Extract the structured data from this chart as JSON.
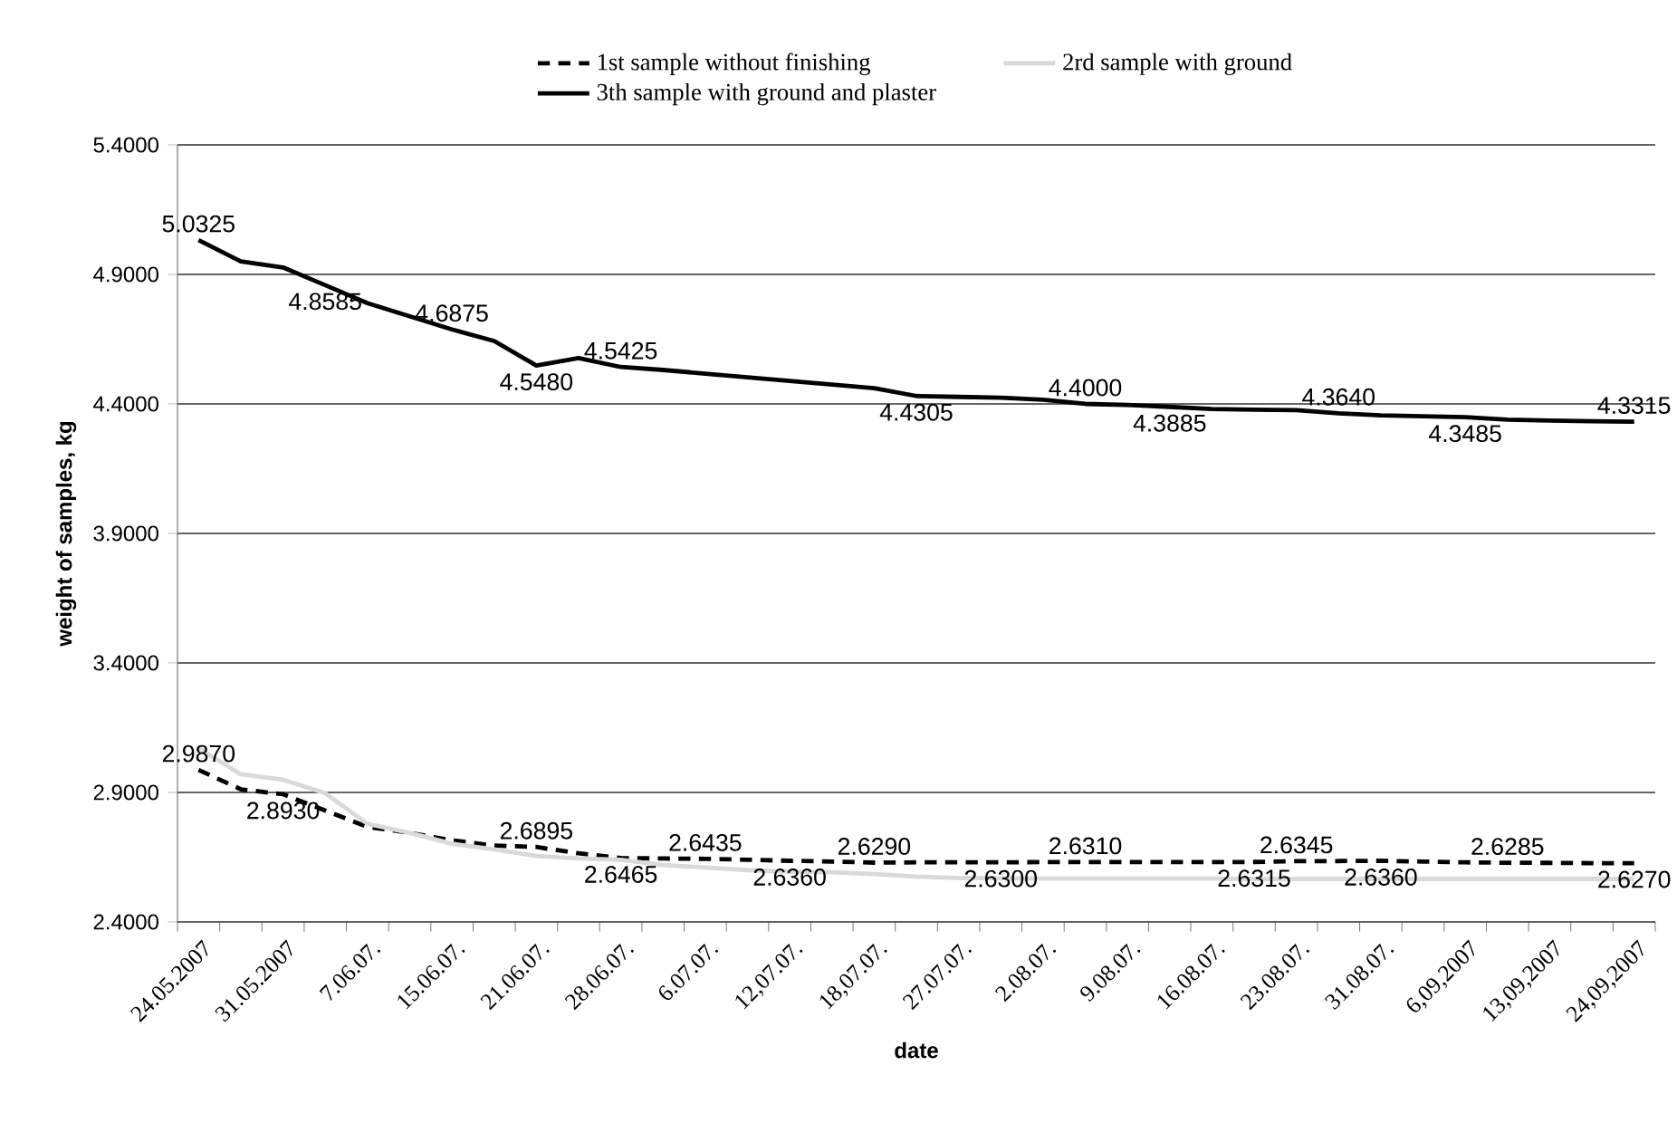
{
  "chart_data": {
    "type": "line",
    "xlabel": "date",
    "ylabel": "weight of samples, kg",
    "categories": [
      "24.05.2007",
      null,
      "31.05.2007",
      null,
      "7.06.07.",
      null,
      "15.06.07.",
      null,
      "21.06.07.",
      null,
      "28.06.07.",
      null,
      "6.07.07.",
      null,
      "12,07.07.",
      null,
      "18,07.07.",
      null,
      "27.07.07.",
      null,
      "2.08.07.",
      null,
      "9.08.07.",
      null,
      "16.08.07.",
      null,
      "23.08.07.",
      null,
      "31.08.07.",
      null,
      "6,09,2007",
      null,
      "13,09,2007",
      null,
      "24,09,2007"
    ],
    "series": [
      {
        "name": "1st sample without finishing",
        "color": "#000000",
        "line_style": "dashed",
        "values": [
          2.987,
          2.912,
          2.893,
          2.83,
          2.767,
          2.744,
          2.715,
          2.695,
          2.6895,
          2.665,
          2.6465,
          2.645,
          2.6435,
          2.64,
          2.636,
          2.633,
          2.629,
          2.63,
          2.63,
          2.63,
          2.631,
          2.631,
          2.631,
          2.631,
          2.631,
          2.6315,
          2.6345,
          2.635,
          2.636,
          2.633,
          2.63,
          2.6285,
          2.628,
          2.627,
          2.627
        ],
        "value_labels": [
          "2.9870",
          null,
          "2.8930",
          null,
          null,
          null,
          null,
          null,
          "2.6895",
          null,
          "2.6465",
          null,
          "2.6435",
          null,
          "2.6360",
          null,
          "2.6290",
          null,
          null,
          "2.6300",
          null,
          "2.6310",
          null,
          null,
          null,
          "2.6315",
          "2.6345",
          null,
          "2.6360",
          null,
          null,
          "2.6285",
          null,
          null,
          "2.6270"
        ]
      },
      {
        "name": "2rd sample with ground",
        "color": "#d9d9d9",
        "line_style": "solid",
        "values": [
          3.071,
          2.97,
          2.949,
          2.897,
          2.779,
          2.744,
          2.702,
          2.68,
          2.655,
          2.645,
          2.64,
          2.62,
          2.61,
          2.6,
          2.594,
          2.592,
          2.585,
          2.575,
          2.57,
          2.568,
          2.567,
          2.567,
          2.567,
          2.567,
          2.567,
          2.566,
          2.566,
          2.566,
          2.566,
          2.566,
          2.566,
          2.566,
          2.566,
          2.566,
          2.566
        ]
      },
      {
        "name": "3th sample with ground and plaster",
        "color": "#000000",
        "line_style": "solid",
        "values": [
          5.0325,
          4.95,
          4.927,
          4.8585,
          4.789,
          4.738,
          4.6875,
          4.643,
          4.548,
          4.577,
          4.5425,
          4.531,
          4.517,
          4.503,
          4.489,
          4.475,
          4.461,
          4.4305,
          4.427,
          4.424,
          4.416,
          4.4,
          4.396,
          4.3885,
          4.38,
          4.378,
          4.376,
          4.364,
          4.356,
          4.352,
          4.3485,
          4.339,
          4.336,
          4.333,
          4.3315
        ],
        "value_labels": [
          "5.0325",
          null,
          null,
          "4.8585",
          null,
          null,
          "4.6875",
          null,
          "4.5480",
          null,
          "4.5425",
          null,
          null,
          null,
          null,
          null,
          null,
          "4.4305",
          null,
          null,
          null,
          "4.4000",
          null,
          "4.3885",
          null,
          null,
          null,
          "4.3640",
          null,
          null,
          "4.3485",
          null,
          null,
          null,
          "4.3315"
        ]
      }
    ],
    "ylim": [
      2.4,
      5.4
    ],
    "yticks": [
      {
        "value": 2.4,
        "label": "2.4000"
      },
      {
        "value": 2.9,
        "label": "2.9000"
      },
      {
        "value": 3.4,
        "label": "3.4000"
      },
      {
        "value": 3.9,
        "label": "3.9000"
      },
      {
        "value": 4.4,
        "label": "4.4000"
      },
      {
        "value": 4.9,
        "label": "4.9000"
      },
      {
        "value": 5.4,
        "label": "5.4000"
      }
    ],
    "grid": "y",
    "legend": "top"
  }
}
